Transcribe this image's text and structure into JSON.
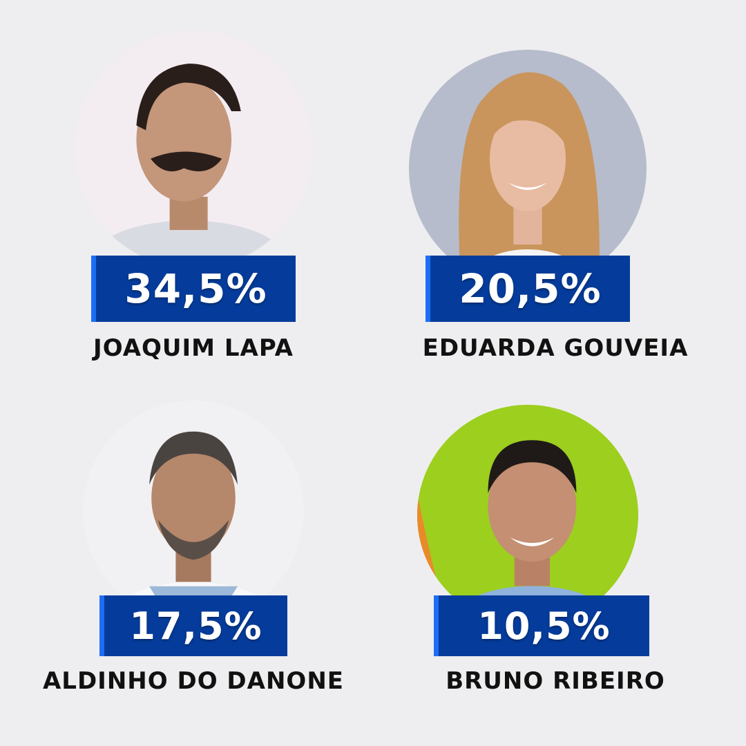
{
  "candidates": [
    {
      "name": "JOAQUIM LAPA",
      "percentage": "34,5%",
      "photo_bg": "#f3edf1"
    },
    {
      "name": "EDUARDA GOUVEIA",
      "percentage": "20,5%",
      "photo_bg": "#b6bccb"
    },
    {
      "name": "ALDINHO DO DANONE",
      "percentage": "17,5%",
      "photo_bg": "#f1f1f3"
    },
    {
      "name": "BRUNO RIBEIRO",
      "percentage": "10,5%",
      "photo_bg": "#9ccf1e"
    }
  ],
  "colors": {
    "badge_bg": "#053c9c",
    "badge_accent": "#1d6ef5",
    "page_bg": "#eeeef0"
  }
}
